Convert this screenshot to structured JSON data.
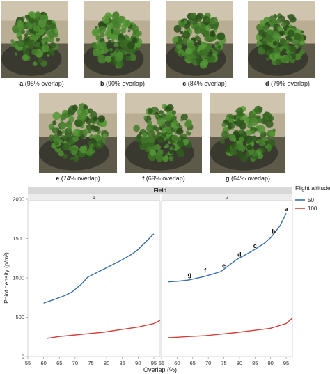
{
  "panels": [
    {
      "letter": "a",
      "label": "(95% overlap)"
    },
    {
      "letter": "b",
      "label": "(90% overlap)"
    },
    {
      "letter": "c",
      "label": "(84% overlap)"
    },
    {
      "letter": "d",
      "label": "(79% overlap)"
    },
    {
      "letter": "e",
      "label": "(74% overlap)"
    },
    {
      "letter": "f",
      "label": "(69% overlap)"
    },
    {
      "letter": "g",
      "label": "(64% overlap)"
    }
  ],
  "chart_data": {
    "type": "line",
    "facet_title": "Field",
    "facets": [
      "1",
      "2"
    ],
    "xlabel": "Overlap (%)",
    "ylabel": "Point density (p/m²)",
    "xlim": [
      55,
      97
    ],
    "ylim": [
      0,
      2000
    ],
    "xticks": [
      55,
      60,
      65,
      70,
      75,
      80,
      85,
      90,
      95
    ],
    "yticks": [
      0,
      500,
      1000,
      1500,
      2000
    ],
    "legend": {
      "title": "Flight altitude",
      "position": "right"
    },
    "series": [
      {
        "name": "50",
        "color": "#3a6fa8",
        "facet": "1",
        "x": [
          60,
          63,
          67,
          69,
          72,
          74,
          79,
          84,
          88,
          90,
          95
        ],
        "y": [
          680,
          720,
          780,
          820,
          920,
          1010,
          1110,
          1210,
          1300,
          1360,
          1560
        ]
      },
      {
        "name": "100",
        "color": "#d0403a",
        "facet": "1",
        "x": [
          61,
          65,
          69,
          74,
          79,
          84,
          90,
          95,
          97
        ],
        "y": [
          230,
          255,
          270,
          290,
          310,
          340,
          375,
          420,
          460
        ]
      },
      {
        "name": "50",
        "color": "#3a6fa8",
        "facet": "2",
        "x": [
          57,
          61,
          64,
          69,
          74,
          79,
          84,
          88,
          90,
          93,
          95
        ],
        "y": [
          950,
          960,
          975,
          1020,
          1080,
          1230,
          1340,
          1440,
          1510,
          1660,
          1820
        ]
      },
      {
        "name": "100",
        "color": "#d0403a",
        "facet": "2",
        "x": [
          57,
          60,
          64,
          69,
          74,
          79,
          84,
          90,
          95,
          97
        ],
        "y": [
          240,
          245,
          255,
          265,
          285,
          305,
          330,
          360,
          420,
          490
        ]
      }
    ],
    "annotations": [
      {
        "text": "a",
        "x": 95,
        "y": 1850
      },
      {
        "text": "b",
        "x": 91,
        "y": 1560
      },
      {
        "text": "c",
        "x": 85,
        "y": 1380
      },
      {
        "text": "d",
        "x": 80,
        "y": 1270
      },
      {
        "text": "e",
        "x": 75,
        "y": 1130
      },
      {
        "text": "f",
        "x": 69,
        "y": 1065
      },
      {
        "text": "g",
        "x": 64,
        "y": 1015
      }
    ]
  }
}
